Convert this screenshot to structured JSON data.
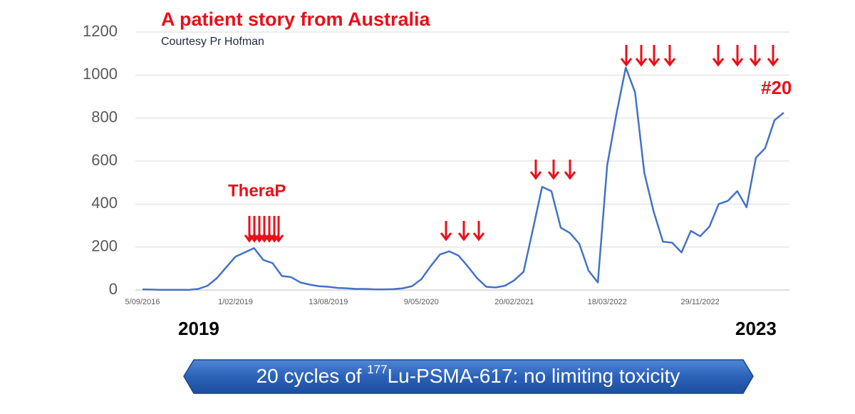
{
  "chart_data": {
    "type": "line",
    "title": "A patient story from Australia",
    "subtitle": "Courtesy  Pr Hofman",
    "categories": [
      "5/09/2016",
      null,
      null,
      null,
      null,
      null,
      null,
      null,
      null,
      null,
      "1/02/2019",
      null,
      null,
      null,
      null,
      null,
      null,
      null,
      null,
      null,
      "13/08/2019",
      null,
      null,
      null,
      null,
      null,
      null,
      null,
      null,
      null,
      "9/05/2020",
      null,
      null,
      null,
      null,
      null,
      null,
      null,
      null,
      null,
      "20/02/2021",
      null,
      null,
      null,
      null,
      null,
      null,
      null,
      null,
      null,
      "18/03/2022",
      null,
      null,
      null,
      null,
      null,
      null,
      null,
      null,
      null,
      "29/11/2022",
      null,
      null,
      null,
      null,
      null,
      null,
      null,
      null,
      null
    ],
    "series": [
      {
        "color": "#4472c4",
        "values": [
          3,
          2,
          1,
          1,
          1,
          1,
          5,
          20,
          55,
          105,
          155,
          175,
          195,
          140,
          125,
          65,
          60,
          35,
          25,
          18,
          15,
          10,
          8,
          5,
          5,
          3,
          3,
          4,
          8,
          18,
          50,
          110,
          165,
          180,
          160,
          110,
          55,
          15,
          12,
          20,
          45,
          85,
          280,
          480,
          460,
          290,
          265,
          215,
          90,
          35,
          580,
          820,
          1035,
          920,
          545,
          365,
          225,
          220,
          175,
          275,
          250,
          295,
          400,
          415,
          460,
          385,
          615,
          660,
          790,
          825
        ]
      }
    ],
    "ylim": [
      0,
      1200
    ],
    "yticks": [
      0,
      200,
      400,
      600,
      800,
      1000,
      1200
    ],
    "grid": true,
    "annotations": {
      "therap": "TheraP",
      "cycle": "#20",
      "start_year": "2019",
      "end_year": "2023"
    },
    "banner": {
      "prefix": "20 cycles of ",
      "superscript": "177",
      "suffix": "Lu-PSMA-617: no limiting toxicity"
    }
  }
}
